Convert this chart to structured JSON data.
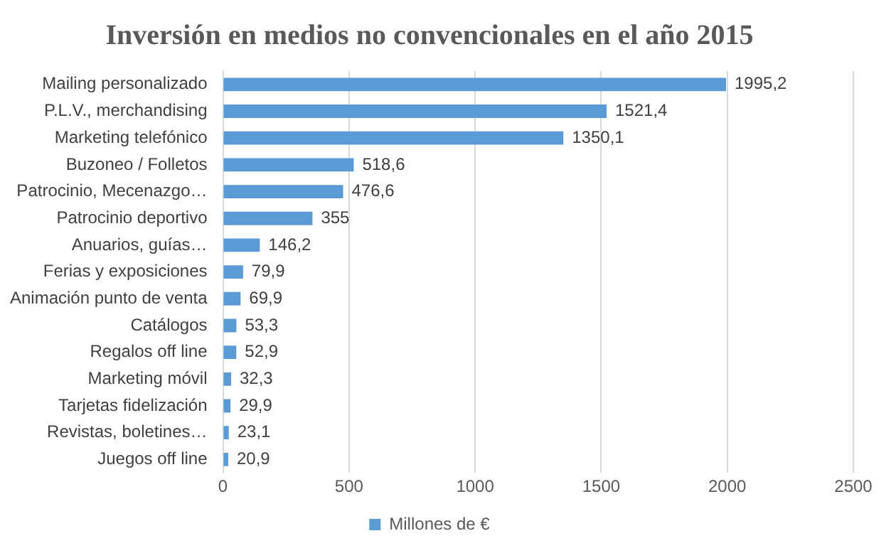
{
  "chart_data": {
    "type": "bar",
    "orientation": "horizontal",
    "title": "Inversión en medios no convencionales en el año 2015",
    "categories": [
      "Mailing personalizado",
      "P.L.V., merchandising",
      "Marketing telefónico",
      "Buzoneo / Folletos",
      "Patrocinio, Mecenazgo…",
      "Patrocinio deportivo",
      "Anuarios, guías…",
      "Ferias y exposiciones",
      "Animación punto de venta",
      "Catálogos",
      "Regalos off line",
      "Marketing móvil",
      "Tarjetas fidelización",
      "Revistas, boletines…",
      "Juegos off line"
    ],
    "series": [
      {
        "name": "Millones de €",
        "color": "#5b9bd5",
        "values": [
          1995.2,
          1521.4,
          1350.1,
          518.6,
          476.6,
          355,
          146.2,
          79.9,
          69.9,
          53.3,
          52.9,
          32.3,
          29.9,
          23.1,
          20.9
        ],
        "value_labels": [
          "1995,2",
          "1521,4",
          "1350,1",
          "518,6",
          "476,6",
          "355",
          "146,2",
          "79,9",
          "69,9",
          "53,3",
          "52,9",
          "32,3",
          "29,9",
          "23,1",
          "20,9"
        ]
      }
    ],
    "xlim": [
      0,
      2500
    ],
    "xticks": [
      0,
      500,
      1000,
      1500,
      2000,
      2500
    ],
    "grid": "x",
    "legend": "bottom"
  }
}
